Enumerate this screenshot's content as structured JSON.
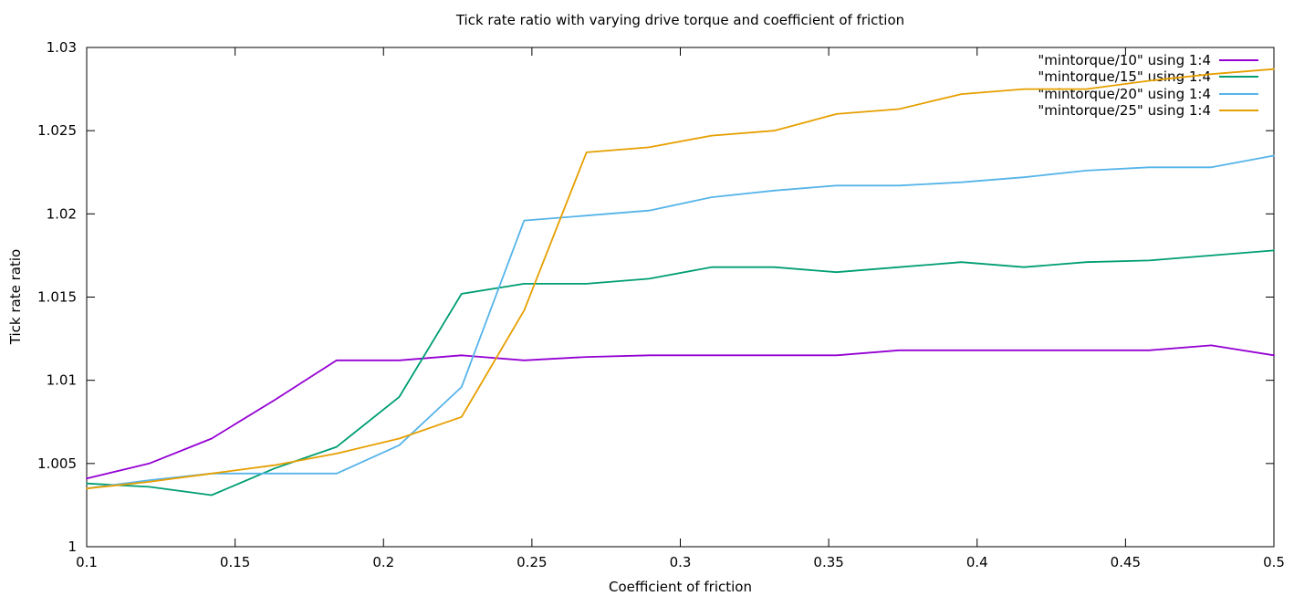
{
  "chart_data": {
    "type": "line",
    "title": "Tick rate ratio with varying drive torque and coefficient of friction",
    "xlabel": "Coefficient of friction",
    "ylabel": "Tick rate ratio",
    "xlim": [
      0.1,
      0.5
    ],
    "ylim": [
      1.0,
      1.03
    ],
    "grid": false,
    "legend_position": "top-right-inside",
    "x_ticks": [
      {
        "v": 0.1,
        "label": "0.1"
      },
      {
        "v": 0.15,
        "label": "0.15"
      },
      {
        "v": 0.2,
        "label": "0.2"
      },
      {
        "v": 0.25,
        "label": "0.25"
      },
      {
        "v": 0.3,
        "label": "0.3"
      },
      {
        "v": 0.35,
        "label": "0.35"
      },
      {
        "v": 0.4,
        "label": "0.4"
      },
      {
        "v": 0.45,
        "label": "0.45"
      },
      {
        "v": 0.5,
        "label": "0.5"
      }
    ],
    "y_ticks": [
      {
        "v": 1.0,
        "label": "1"
      },
      {
        "v": 1.005,
        "label": "1.005"
      },
      {
        "v": 1.01,
        "label": "1.01"
      },
      {
        "v": 1.015,
        "label": "1.015"
      },
      {
        "v": 1.02,
        "label": "1.02"
      },
      {
        "v": 1.025,
        "label": "1.025"
      },
      {
        "v": 1.03,
        "label": "1.03"
      }
    ],
    "x": [
      0.1,
      0.1211,
      0.1421,
      0.1632,
      0.1842,
      0.2053,
      0.2263,
      0.2474,
      0.2684,
      0.2895,
      0.3105,
      0.3316,
      0.3526,
      0.3737,
      0.3947,
      0.4158,
      0.4368,
      0.4579,
      0.4789,
      0.5
    ],
    "series": [
      {
        "name": "\"mintorque/10\" using 1:4",
        "color": "#9400d3",
        "values": [
          1.0041,
          1.005,
          1.0065,
          1.0088,
          1.0112,
          1.0112,
          1.0115,
          1.0112,
          1.0114,
          1.0115,
          1.0115,
          1.0115,
          1.0115,
          1.0118,
          1.0118,
          1.0118,
          1.0118,
          1.0118,
          1.0121,
          1.0115
        ]
      },
      {
        "name": "\"mintorque/15\" using 1:4",
        "color": "#009e73",
        "values": [
          1.0038,
          1.0036,
          1.0031,
          1.0047,
          1.006,
          1.009,
          1.0152,
          1.0158,
          1.0158,
          1.0161,
          1.0168,
          1.0168,
          1.0165,
          1.0168,
          1.0171,
          1.0168,
          1.0171,
          1.0172,
          1.0175,
          1.0178
        ]
      },
      {
        "name": "\"mintorque/20\" using 1:4",
        "color": "#56b4e9",
        "values": [
          1.0035,
          1.004,
          1.0044,
          1.0044,
          1.0044,
          1.0061,
          1.0096,
          1.0196,
          1.0199,
          1.0202,
          1.021,
          1.0214,
          1.0217,
          1.0217,
          1.0219,
          1.0222,
          1.0226,
          1.0228,
          1.0228,
          1.0235
        ]
      },
      {
        "name": "\"mintorque/25\" using 1:4",
        "color": "#e69f00",
        "values": [
          1.0035,
          1.0039,
          1.0044,
          1.0049,
          1.0056,
          1.0065,
          1.0078,
          1.0142,
          1.0237,
          1.024,
          1.0247,
          1.025,
          1.026,
          1.0263,
          1.0272,
          1.0275,
          1.0275,
          1.028,
          1.0284,
          1.0287
        ]
      }
    ]
  }
}
